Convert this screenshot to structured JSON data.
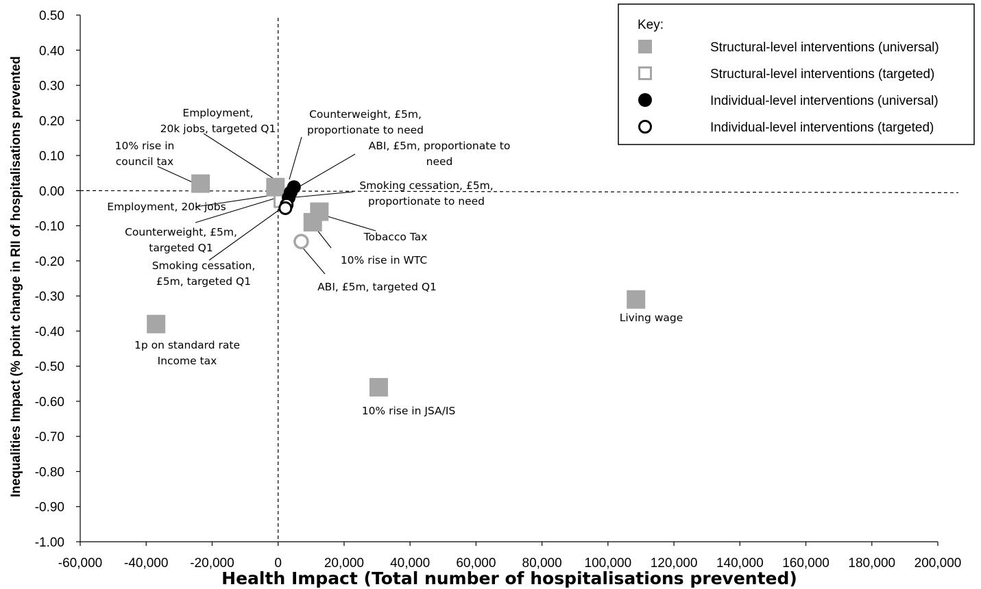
{
  "chart_data": {
    "type": "scatter",
    "title": "",
    "xlabel": "Health Impact (Total number of  hospitalisations prevented)",
    "ylabel": "Inequalities Impact (% point change in RII of hospitalisations prevented",
    "xlim": [
      -60000,
      200000
    ],
    "ylim": [
      -1.0,
      0.5
    ],
    "xticks": [
      "-60,000",
      "-40,000",
      "-20,000",
      "0",
      "20,000",
      "40,000",
      "60,000",
      "80,000",
      "100,000",
      "120,000",
      "140,000",
      "160,000",
      "180,000",
      "200,000"
    ],
    "yticks": [
      "0.50",
      "0.40",
      "0.30",
      "0.20",
      "0.10",
      "0.00",
      "-0.10",
      "-0.20",
      "-0.30",
      "-0.40",
      "-0.50",
      "-0.60",
      "-0.70",
      "-0.80",
      "-0.90",
      "-1.00"
    ],
    "grid": false,
    "legend_position": "top-right",
    "legend": {
      "title": "Key:",
      "entries": [
        {
          "series": "structural_universal",
          "label": "Structural-level interventions (universal)",
          "marker": "filled-square",
          "color": "#a6a6a6"
        },
        {
          "series": "structural_targeted",
          "label": "Structural-level interventions (targeted)",
          "marker": "open-square",
          "color": "#a6a6a6"
        },
        {
          "series": "individual_universal",
          "label": "Individual-level interventions (universal)",
          "marker": "filled-circle",
          "color": "#000000"
        },
        {
          "series": "individual_targeted",
          "label": "Individual-level interventions (targeted)",
          "marker": "open-circle",
          "color": "#000000"
        }
      ]
    },
    "points": [
      {
        "label": "Living wage",
        "x": 108500,
        "y": -0.31,
        "series": "structural_universal"
      },
      {
        "label": "10% rise in JSA/IS",
        "x": 30500,
        "y": -0.56,
        "series": "structural_universal"
      },
      {
        "label": "1p on standard rate Income tax",
        "x": -37000,
        "y": -0.38,
        "series": "structural_universal"
      },
      {
        "label": "10% rise in council tax",
        "x": -23500,
        "y": 0.02,
        "series": "structural_universal"
      },
      {
        "label": "Employment, 20k jobs",
        "x": -800,
        "y": 0.01,
        "series": "structural_universal"
      },
      {
        "label": "Tobacco Tax",
        "x": 12500,
        "y": -0.06,
        "series": "structural_universal"
      },
      {
        "label": "10% rise in WTC",
        "x": 10500,
        "y": -0.09,
        "series": "structural_universal"
      },
      {
        "label": "Employment, 20k jobs, targeted Q1",
        "x": 700,
        "y": -0.03,
        "series": "structural_targeted"
      },
      {
        "label": "ABI, £5m, targeted Q1",
        "x": 7000,
        "y": -0.145,
        "series": "structural_targeted"
      },
      {
        "label": "Counterweight, £5m, proportionate to need",
        "x": 4800,
        "y": 0.01,
        "series": "individual_universal"
      },
      {
        "label": "ABI, £5m, proportionate to need",
        "x": 3800,
        "y": -0.005,
        "series": "individual_universal"
      },
      {
        "label": "Smoking cessation, £5m, proportionate to need",
        "x": 3200,
        "y": -0.02,
        "series": "individual_universal"
      },
      {
        "label": "Counterweight, £5m, targeted Q1",
        "x": 2600,
        "y": -0.04,
        "series": "individual_targeted"
      },
      {
        "label": "Smoking cessation, £5m, targeted Q1",
        "x": 2200,
        "y": -0.05,
        "series": "individual_targeted"
      }
    ],
    "annotations": [
      {
        "lines": [
          "Employment,",
          "20k jobs, targeted Q1"
        ]
      },
      {
        "lines": [
          "10% rise in",
          "council tax"
        ]
      },
      {
        "lines": [
          "Employment, 20k jobs"
        ]
      },
      {
        "lines": [
          "Counterweight, £5m,",
          "targeted Q1"
        ]
      },
      {
        "lines": [
          "Smoking cessation,",
          "£5m, targeted Q1"
        ]
      },
      {
        "lines": [
          "1p on standard rate",
          "Income tax"
        ]
      },
      {
        "lines": [
          "Counterweight, £5m,",
          "proportionate to need"
        ]
      },
      {
        "lines": [
          "ABI, £5m, proportionate to",
          "need"
        ]
      },
      {
        "lines": [
          "Smoking cessation, £5m,",
          "proportionate to need"
        ]
      },
      {
        "lines": [
          "Tobacco Tax"
        ]
      },
      {
        "lines": [
          "10% rise in WTC"
        ]
      },
      {
        "lines": [
          "ABI, £5m, targeted Q1"
        ]
      },
      {
        "lines": [
          "Living wage"
        ]
      },
      {
        "lines": [
          "10% rise in JSA/IS"
        ]
      }
    ]
  }
}
